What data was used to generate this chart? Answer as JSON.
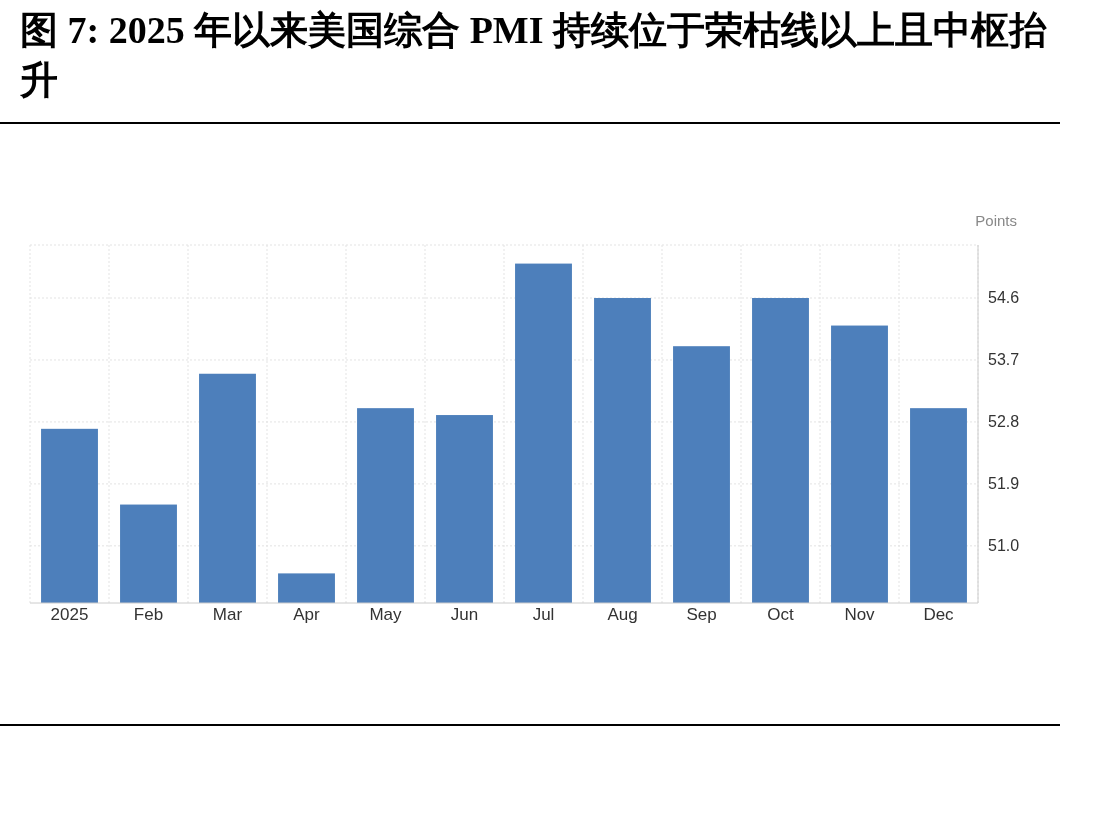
{
  "chart_data": {
    "type": "bar",
    "title": "图 7: 2025 年以来美国综合 PMI 持续位于荣枯线以上且中枢抬升",
    "ylabel": "Points",
    "categories": [
      "2025",
      "Feb",
      "Mar",
      "Apr",
      "May",
      "Jun",
      "Jul",
      "Aug",
      "Sep",
      "Oct",
      "Nov",
      "Dec"
    ],
    "values": [
      52.7,
      51.6,
      53.5,
      50.6,
      53.0,
      52.9,
      55.1,
      54.6,
      53.9,
      54.6,
      54.2,
      53.0
    ],
    "color": "#4d7fbb",
    "ylim": [
      50.17,
      55.37
    ],
    "yticks": [
      {
        "value": 51.0,
        "label": "51.0"
      },
      {
        "value": 51.9,
        "label": "51.9"
      },
      {
        "value": 52.8,
        "label": "52.8"
      },
      {
        "value": 53.7,
        "label": "53.7"
      },
      {
        "value": 54.6,
        "label": "54.6"
      }
    ],
    "grid": true
  }
}
